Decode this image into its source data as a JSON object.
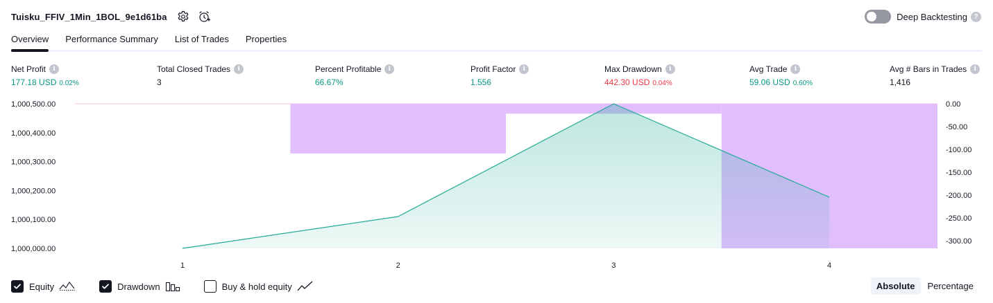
{
  "header": {
    "strategy_name": "Tuisku_FFIV_1Min_1BOL_9e1d61ba",
    "deep_backtesting_label": "Deep Backtesting",
    "deep_backtesting_on": false
  },
  "tabs": [
    {
      "label": "Overview",
      "active": true
    },
    {
      "label": "Performance Summary",
      "active": false
    },
    {
      "label": "List of Trades",
      "active": false
    },
    {
      "label": "Properties",
      "active": false
    }
  ],
  "metrics": [
    {
      "label": "Net Profit",
      "value": "177.18 USD",
      "sub": "0.02%",
      "tone": "green"
    },
    {
      "label": "Total Closed Trades",
      "value": "3",
      "sub": "",
      "tone": "neutral"
    },
    {
      "label": "Percent Profitable",
      "value": "66.67%",
      "sub": "",
      "tone": "green"
    },
    {
      "label": "Profit Factor",
      "value": "1.556",
      "sub": "",
      "tone": "green"
    },
    {
      "label": "Max Drawdown",
      "value": "442.30 USD",
      "sub": "0.04%",
      "tone": "red"
    },
    {
      "label": "Avg Trade",
      "value": "59.06 USD",
      "sub": "0.60%",
      "tone": "green"
    },
    {
      "label": "Avg # Bars in Trades",
      "value": "1,416",
      "sub": "",
      "tone": "neutral"
    }
  ],
  "colors": {
    "green": "#089981",
    "red": "#f23645",
    "equity_line": "#22ab94",
    "drawdown_bar": "#e1bfff",
    "text": "#131722"
  },
  "chart_data": {
    "type": "area",
    "x": [
      1,
      2,
      3,
      4
    ],
    "x_tick_labels": [
      "1",
      "2",
      "3",
      "4"
    ],
    "left_axis": {
      "ticks": [
        "1,000,500.00",
        "1,000,400.00",
        "1,000,300.00",
        "1,000,200.00",
        "1,000,100.00",
        "1,000,000.00"
      ],
      "range": [
        1000000,
        1000500
      ]
    },
    "right_axis": {
      "ticks": [
        "0.00",
        "-50.00",
        "-100.00",
        "-150.00",
        "-200.00",
        "-250.00",
        "-300.00"
      ],
      "range": [
        -320,
        0
      ]
    },
    "series": [
      {
        "type": "area",
        "axis": "left",
        "values": [
          1000000,
          1000110,
          1000500,
          1000177
        ]
      },
      {
        "type": "bar",
        "axis": "right",
        "values": [
          0,
          -110,
          -22,
          -320
        ]
      }
    ]
  },
  "legend": {
    "items": [
      {
        "label": "Equity",
        "checked": true,
        "icon": "equity-line-icon"
      },
      {
        "label": "Drawdown",
        "checked": true,
        "icon": "drawdown-bars-icon"
      },
      {
        "label": "Buy & hold equity",
        "checked": false,
        "icon": "buy-hold-line-icon"
      }
    ]
  },
  "mode": {
    "absolute_label": "Absolute",
    "percentage_label": "Percentage",
    "selected": "absolute"
  }
}
